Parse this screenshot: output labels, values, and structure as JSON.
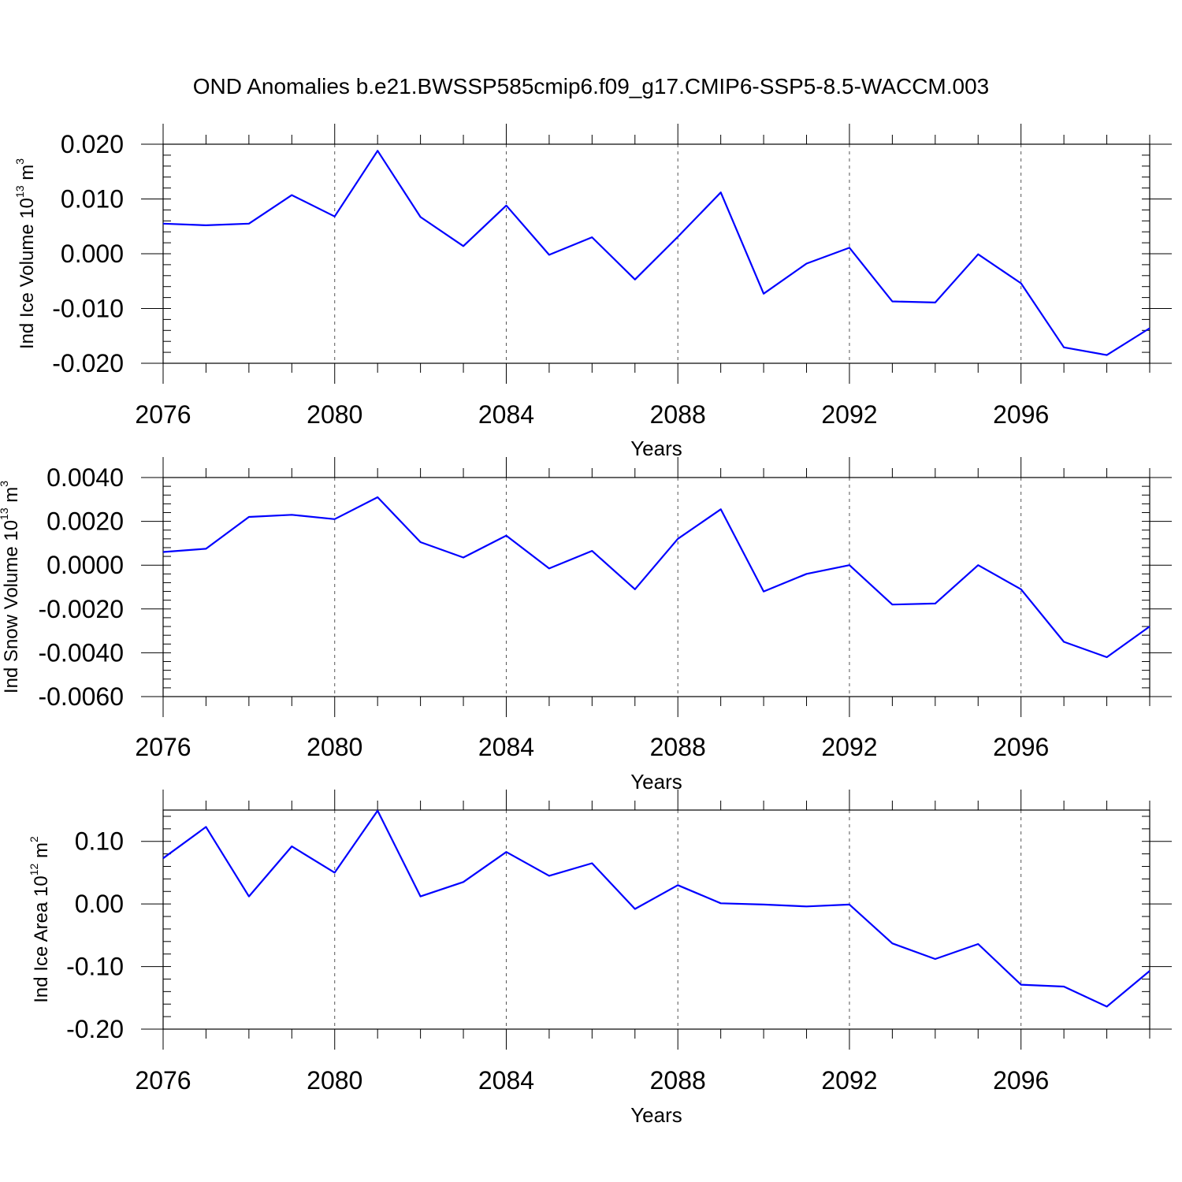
{
  "title": "OND Anomalies b.e21.BWSSP585cmip6.f09_g17.CMIP6-SSP5-8.5-WACCM.003",
  "chart_data": [
    {
      "type": "line",
      "ylabel": "Ind Ice Volume",
      "ylabel_unit_base": "10",
      "ylabel_unit_exp": "13",
      "ylabel_unit_tail": " m",
      "ylabel_unit_tail_exp": "3",
      "xlabel": "Years",
      "xlim": [
        2076,
        2099
      ],
      "ylim": [
        -0.02,
        0.02
      ],
      "yticks": [
        "0.020",
        "0.010",
        "0.000",
        "-0.010",
        "-0.020"
      ],
      "ytick_values": [
        0.02,
        0.01,
        0.0,
        -0.01,
        -0.02
      ],
      "xticks": [
        "2076",
        "2080",
        "2084",
        "2088",
        "2092",
        "2096"
      ],
      "x": [
        2076,
        2077,
        2078,
        2079,
        2080,
        2081,
        2082,
        2083,
        2084,
        2085,
        2086,
        2087,
        2088,
        2089,
        2090,
        2091,
        2092,
        2093,
        2094,
        2095,
        2096,
        2097,
        2098,
        2099
      ],
      "series": [
        {
          "color": "#0000ff",
          "values": [
            0.0055,
            0.0052,
            0.0055,
            0.0107,
            0.0068,
            0.0188,
            0.0067,
            0.0014,
            0.0088,
            -0.0002,
            0.003,
            -0.0047,
            0.0031,
            0.0112,
            -0.0073,
            -0.0018,
            0.0011,
            -0.0087,
            -0.0089,
            -0.0001,
            -0.0054,
            -0.0171,
            -0.0185,
            -0.0136
          ]
        }
      ]
    },
    {
      "type": "line",
      "ylabel": "Ind Snow Volume",
      "ylabel_unit_base": "10",
      "ylabel_unit_exp": "13",
      "ylabel_unit_tail": " m",
      "ylabel_unit_tail_exp": "3",
      "xlabel": "Years",
      "xlim": [
        2076,
        2099
      ],
      "ylim": [
        -0.006,
        0.004
      ],
      "yticks": [
        "0.0040",
        "0.0020",
        "0.0000",
        "-0.0020",
        "-0.0040",
        "-0.0060"
      ],
      "ytick_values": [
        0.004,
        0.002,
        0.0,
        -0.002,
        -0.004,
        -0.006
      ],
      "xticks": [
        "2076",
        "2080",
        "2084",
        "2088",
        "2092",
        "2096"
      ],
      "x": [
        2076,
        2077,
        2078,
        2079,
        2080,
        2081,
        2082,
        2083,
        2084,
        2085,
        2086,
        2087,
        2088,
        2089,
        2090,
        2091,
        2092,
        2093,
        2094,
        2095,
        2096,
        2097,
        2098,
        2099
      ],
      "series": [
        {
          "color": "#0000ff",
          "values": [
            0.0006,
            0.00075,
            0.0022,
            0.0023,
            0.0021,
            0.0031,
            0.00105,
            0.00035,
            0.00135,
            -0.00015,
            0.00065,
            -0.0011,
            0.0012,
            0.00255,
            -0.0012,
            -0.0004,
            0.0,
            -0.0018,
            -0.00175,
            0.0,
            -0.0011,
            -0.0035,
            -0.0042,
            -0.0028
          ]
        }
      ]
    },
    {
      "type": "line",
      "ylabel": "Ind Ice Area",
      "ylabel_unit_base": "10",
      "ylabel_unit_exp": "12",
      "ylabel_unit_tail": " m",
      "ylabel_unit_tail_exp": "2",
      "xlabel": "Years",
      "xlim": [
        2076,
        2099
      ],
      "ylim": [
        -0.2,
        0.15
      ],
      "yticks": [
        "0.10",
        "0.00",
        "-0.10",
        "-0.20"
      ],
      "ytick_values": [
        0.1,
        0.0,
        -0.1,
        -0.2
      ],
      "xticks": [
        "2076",
        "2080",
        "2084",
        "2088",
        "2092",
        "2096"
      ],
      "x": [
        2076,
        2077,
        2078,
        2079,
        2080,
        2081,
        2082,
        2083,
        2084,
        2085,
        2086,
        2087,
        2088,
        2089,
        2090,
        2091,
        2092,
        2093,
        2094,
        2095,
        2096,
        2097,
        2098,
        2099
      ],
      "series": [
        {
          "color": "#0000ff",
          "values": [
            0.073,
            0.123,
            0.012,
            0.092,
            0.05,
            0.149,
            0.012,
            0.035,
            0.083,
            0.045,
            0.065,
            -0.008,
            0.03,
            0.001,
            -0.001,
            -0.004,
            -0.001,
            -0.063,
            -0.088,
            -0.064,
            -0.129,
            -0.132,
            -0.164,
            -0.107
          ]
        }
      ]
    }
  ]
}
